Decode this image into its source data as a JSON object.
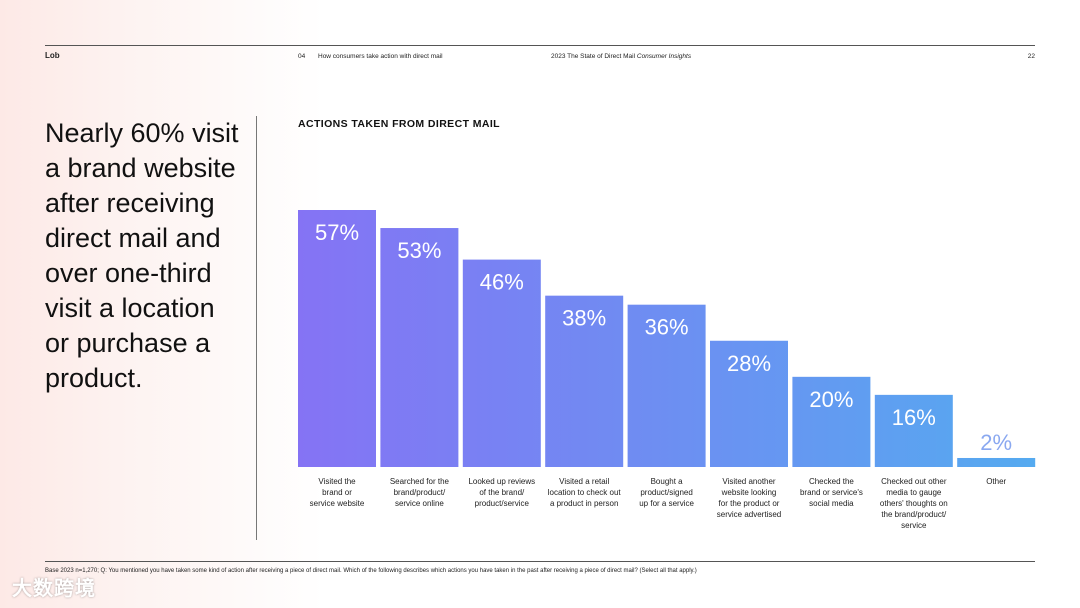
{
  "header": {
    "logo": "Lob",
    "section_number": "04",
    "section_title": "How consumers take action with direct mail",
    "report_title": "2023 The State of Direct Mail",
    "report_subtitle": "Consumer Insights",
    "page_number": "22"
  },
  "headline": "Nearly 60% visit a brand website after receiving direct mail and over one-third visit a location or purchase a product.",
  "chart_data": {
    "type": "bar",
    "title": "ACTIONS TAKEN FROM DIRECT MAIL",
    "categories": [
      [
        "Visited the",
        "brand or",
        "service website"
      ],
      [
        "Searched for the",
        "brand/product/",
        "service online"
      ],
      [
        "Looked up reviews",
        "of the brand/",
        "product/service"
      ],
      [
        "Visited a retail",
        "location to check out",
        "a product in person"
      ],
      [
        "Bought a",
        "product/signed",
        "up for a service"
      ],
      [
        "Visited another",
        "website looking",
        "for the product or",
        "service advertised"
      ],
      [
        "Checked the",
        "brand or service's",
        "social media"
      ],
      [
        "Checked out other",
        "media to gauge",
        "others' thoughts on",
        "the brand/product/",
        "service"
      ],
      [
        "Other"
      ]
    ],
    "values": [
      57,
      53,
      46,
      38,
      36,
      28,
      20,
      16,
      2
    ],
    "data_labels": [
      "57%",
      "53%",
      "46%",
      "38%",
      "36%",
      "28%",
      "20%",
      "16%",
      "2%"
    ],
    "ylim": [
      0,
      60
    ],
    "xlabel": "",
    "ylabel": "",
    "grid": false
  },
  "colors": {
    "bar_start": "#8573f4",
    "bar_end": "#55aaf0",
    "label_text": "#ffffff",
    "other_label": "#8aa8f0"
  },
  "footnote": "Base 2023 n=1,270; Q: You mentioned you have taken some kind of action after receiving a piece of direct mail. Which of the following describes which actions you have taken in the past after receiving a piece of direct mail? (Select all that apply.)",
  "watermark": "大数跨境"
}
